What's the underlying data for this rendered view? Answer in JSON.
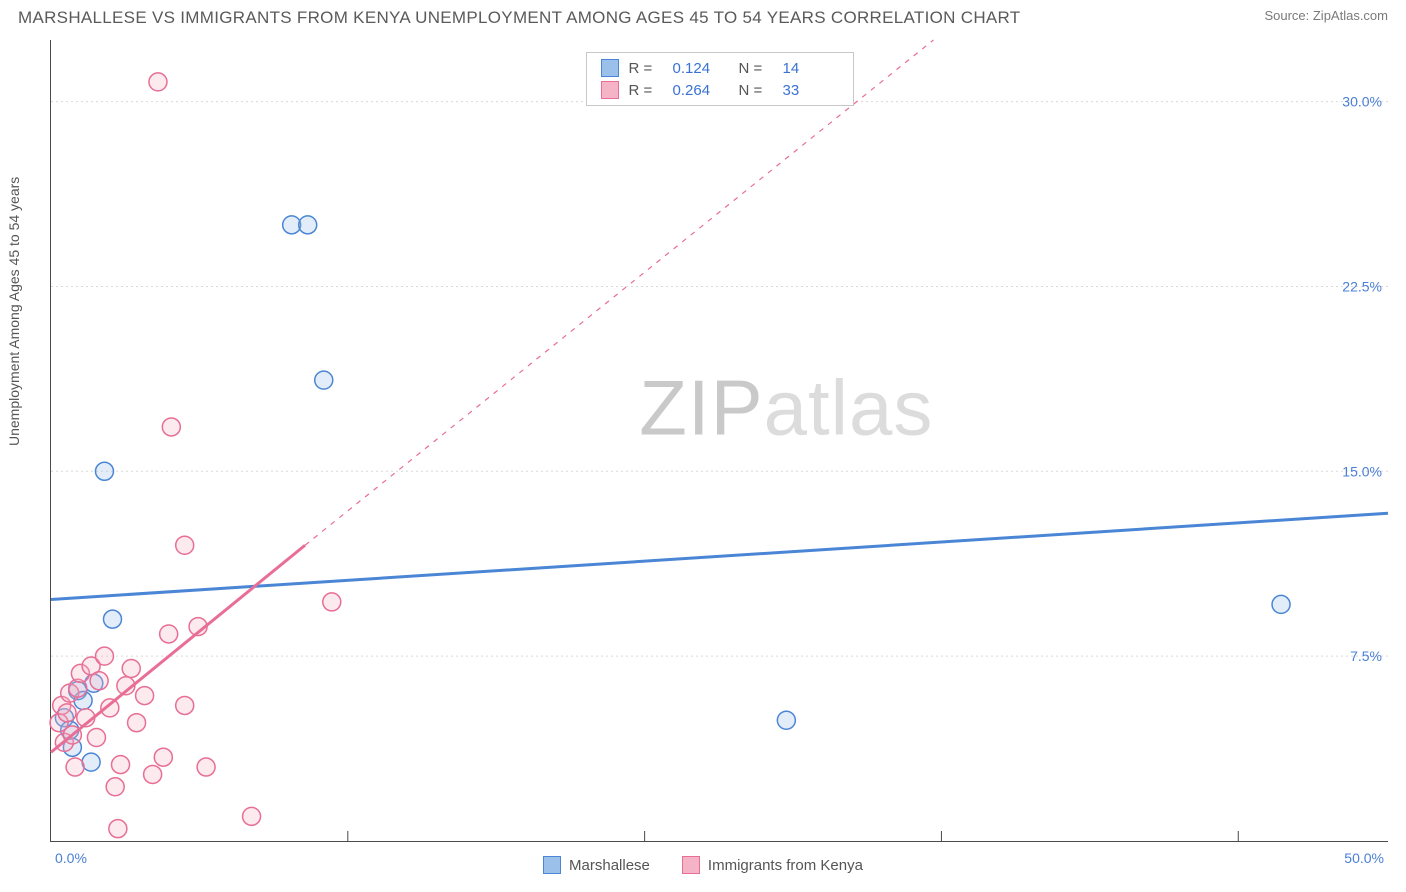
{
  "title": "MARSHALLESE VS IMMIGRANTS FROM KENYA UNEMPLOYMENT AMONG AGES 45 TO 54 YEARS CORRELATION CHART",
  "source_label": "Source: ",
  "source_value": "ZipAtlas.com",
  "ylabel": "Unemployment Among Ages 45 to 54 years",
  "watermark_a": "ZIP",
  "watermark_b": "atlas",
  "chart": {
    "type": "scatter",
    "background_color": "#ffffff",
    "grid_color": "#d9d9d9",
    "axis_color": "#4a4a4a",
    "tick_label_color": "#4a7fd6",
    "xlim": [
      0,
      50
    ],
    "ylim": [
      0,
      32.5
    ],
    "x_ticks": [
      0,
      50
    ],
    "x_tick_labels": [
      "0.0%",
      "50.0%"
    ],
    "x_minor_ticks": [
      11.1,
      22.2,
      33.3,
      44.4
    ],
    "y_ticks": [
      7.5,
      15.0,
      22.5,
      30.0
    ],
    "y_tick_labels": [
      "7.5%",
      "15.0%",
      "22.5%",
      "30.0%"
    ],
    "marker_radius": 9,
    "marker_stroke_width": 1.5,
    "marker_fill_opacity": 0.28,
    "trend_line_width_solid": 3,
    "trend_line_width_dash": 1.2
  },
  "series": [
    {
      "key": "marshallese",
      "label": "Marshallese",
      "color_stroke": "#4a86d5",
      "color_fill": "#9bc0ea",
      "R": "0.124",
      "N": "14",
      "points": [
        [
          0.5,
          5.0
        ],
        [
          0.8,
          3.8
        ],
        [
          1.0,
          6.1
        ],
        [
          1.2,
          5.7
        ],
        [
          1.5,
          3.2
        ],
        [
          1.6,
          6.4
        ],
        [
          2.3,
          9.0
        ],
        [
          2.0,
          15.0
        ],
        [
          9.0,
          25.0
        ],
        [
          9.6,
          25.0
        ],
        [
          10.2,
          18.7
        ],
        [
          27.5,
          4.9
        ],
        [
          46.0,
          9.6
        ],
        [
          0.7,
          4.5
        ]
      ],
      "trend_solid": {
        "x1": 0,
        "y1": 9.8,
        "x2": 50,
        "y2": 13.3
      }
    },
    {
      "key": "kenya",
      "label": "Immigrants from Kenya",
      "color_stroke": "#e86e95",
      "color_fill": "#f4b3c7",
      "R": "0.264",
      "N": "33",
      "points": [
        [
          0.3,
          4.8
        ],
        [
          0.4,
          5.5
        ],
        [
          0.5,
          4.0
        ],
        [
          0.6,
          5.2
        ],
        [
          0.7,
          6.0
        ],
        [
          0.8,
          4.3
        ],
        [
          0.9,
          3.0
        ],
        [
          1.0,
          6.2
        ],
        [
          1.1,
          6.8
        ],
        [
          1.3,
          5.0
        ],
        [
          1.5,
          7.1
        ],
        [
          1.7,
          4.2
        ],
        [
          1.8,
          6.5
        ],
        [
          2.0,
          7.5
        ],
        [
          2.2,
          5.4
        ],
        [
          2.4,
          2.2
        ],
        [
          2.6,
          3.1
        ],
        [
          2.8,
          6.3
        ],
        [
          3.0,
          7.0
        ],
        [
          3.2,
          4.8
        ],
        [
          3.5,
          5.9
        ],
        [
          3.8,
          2.7
        ],
        [
          4.2,
          3.4
        ],
        [
          4.4,
          8.4
        ],
        [
          5.0,
          5.5
        ],
        [
          5.0,
          12.0
        ],
        [
          5.5,
          8.7
        ],
        [
          5.8,
          3.0
        ],
        [
          7.5,
          1.0
        ],
        [
          4.5,
          16.8
        ],
        [
          4.0,
          30.8
        ],
        [
          10.5,
          9.7
        ],
        [
          2.5,
          0.5
        ]
      ],
      "trend_solid": {
        "x1": 0,
        "y1": 3.6,
        "x2": 9.5,
        "y2": 12.0
      },
      "trend_dash": {
        "x1": 9.5,
        "y1": 12.0,
        "x2": 33.0,
        "y2": 32.5
      }
    }
  ],
  "legend_top_labels": {
    "R": "R  =",
    "N": "N  ="
  },
  "legend_bottom": [
    "Marshallese",
    "Immigrants from Kenya"
  ]
}
